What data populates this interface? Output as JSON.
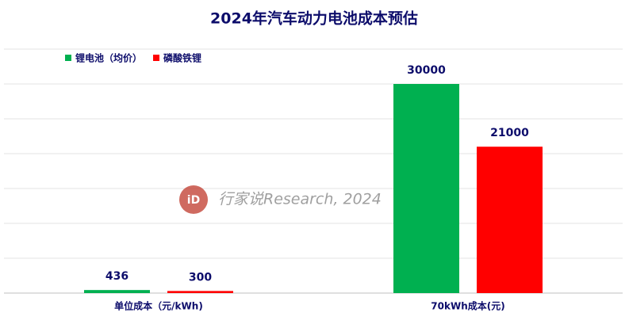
{
  "chart_data": {
    "type": "bar",
    "title": "2024年汽车动力电池成本预估",
    "categories": [
      "单位成本（元/kWh)",
      "70kWh成本(元)"
    ],
    "series": [
      {
        "name": "锂电池（均价）",
        "color": "#00b050",
        "values": [
          436,
          30000
        ]
      },
      {
        "name": "磷酸铁锂",
        "color": "#ff0000",
        "values": [
          300,
          21000
        ]
      }
    ],
    "ylim": [
      0,
      35000
    ],
    "yticks": [
      0,
      5000,
      10000,
      15000,
      20000,
      25000,
      30000,
      35000
    ],
    "show_ytick_labels": false,
    "grid": true,
    "legend": "top-left",
    "watermark": "行家说Research, 2024"
  }
}
